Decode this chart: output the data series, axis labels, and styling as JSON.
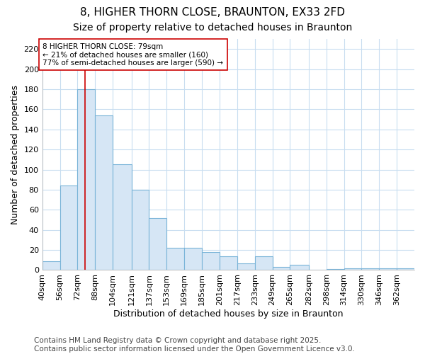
{
  "title": "8, HIGHER THORN CLOSE, BRAUNTON, EX33 2FD",
  "subtitle": "Size of property relative to detached houses in Braunton",
  "xlabel": "Distribution of detached houses by size in Braunton",
  "ylabel": "Number of detached properties",
  "bin_labels": [
    "40sqm",
    "56sqm",
    "72sqm",
    "88sqm",
    "104sqm",
    "121sqm",
    "137sqm",
    "153sqm",
    "169sqm",
    "185sqm",
    "201sqm",
    "217sqm",
    "233sqm",
    "249sqm",
    "265sqm",
    "282sqm",
    "298sqm",
    "314sqm",
    "330sqm",
    "346sqm",
    "362sqm"
  ],
  "bin_edges": [
    40,
    56,
    72,
    88,
    104,
    121,
    137,
    153,
    169,
    185,
    201,
    217,
    233,
    249,
    265,
    282,
    298,
    314,
    330,
    346,
    362,
    378
  ],
  "values": [
    9,
    84,
    180,
    154,
    105,
    80,
    52,
    22,
    22,
    18,
    14,
    7,
    14,
    3,
    5,
    0,
    1,
    2,
    2,
    2,
    2
  ],
  "bar_color": "#d6e6f5",
  "bar_edge_color": "#7ab4d8",
  "property_size": 79,
  "vline_color": "#cc0000",
  "annotation_text": "8 HIGHER THORN CLOSE: 79sqm\n← 21% of detached houses are smaller (160)\n77% of semi-detached houses are larger (590) →",
  "annotation_box_color": "#ffffff",
  "annotation_box_edge": "#cc0000",
  "ylim": [
    0,
    230
  ],
  "yticks": [
    0,
    20,
    40,
    60,
    80,
    100,
    120,
    140,
    160,
    180,
    200,
    220
  ],
  "footer": "Contains HM Land Registry data © Crown copyright and database right 2025.\nContains public sector information licensed under the Open Government Licence v3.0.",
  "bg_color": "#ffffff",
  "grid_color": "#c8ddf0",
  "title_fontsize": 11,
  "subtitle_fontsize": 10,
  "label_fontsize": 9,
  "tick_fontsize": 8,
  "footer_fontsize": 7.5
}
